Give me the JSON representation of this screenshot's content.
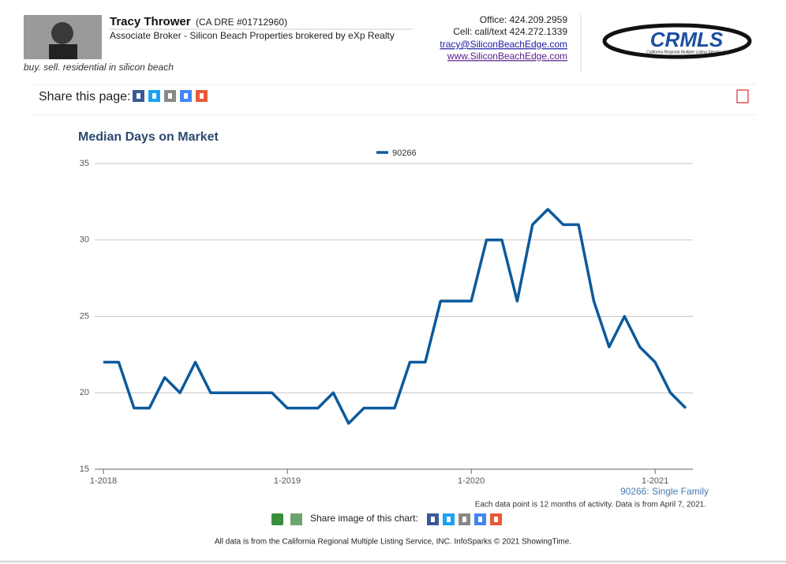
{
  "header": {
    "name": "Tracy Thrower",
    "license": "(CA DRE #01712960)",
    "role": "Associate Broker - Silicon Beach Properties brokered by eXp Realty",
    "tagline": "buy. sell. residential in silicon beach",
    "office": "Office: 424.209.2959",
    "cell": "Cell: call/text 424.272.1339",
    "email": "tracy@SiliconBeachEdge.com",
    "website": "www.SiliconBeachEdge.com",
    "logo": "CRMLS",
    "logo_subtitle": "California Regional Multiple Listing Service, Inc."
  },
  "share_page": "Share this page:",
  "chart_data": {
    "type": "line",
    "title": "Median Days on Market",
    "categories": [
      "1-2018",
      null,
      null,
      null,
      null,
      null,
      null,
      null,
      null,
      null,
      null,
      null,
      "1-2019",
      null,
      null,
      null,
      null,
      null,
      null,
      null,
      null,
      null,
      null,
      null,
      "1-2020",
      null,
      null,
      null,
      null,
      null,
      null,
      null,
      null,
      null,
      null,
      null,
      "1-2021",
      null,
      null
    ],
    "series": [
      {
        "name": "90266",
        "color": "#0d5a9c",
        "values": [
          22,
          22,
          19,
          19,
          21,
          20,
          22,
          20,
          20,
          20,
          20,
          20,
          19,
          19,
          19,
          20,
          18,
          19,
          19,
          19,
          22,
          22,
          26,
          26,
          26,
          30,
          30,
          26,
          31,
          32,
          31,
          31,
          26,
          23,
          25,
          23,
          22,
          20,
          19
        ]
      }
    ],
    "ylim": [
      15,
      35
    ],
    "yticks": [
      15,
      20,
      25,
      30,
      35
    ],
    "grid": true,
    "subtitle": "90266: Single Family",
    "note": "Each data point is 12 months of activity. Data is from April 7, 2021."
  },
  "share_chart": "Share image of this chart:",
  "footer": "All data is from the California Regional Multiple Listing Service, INC. InfoSparks © 2021 ShowingTime."
}
